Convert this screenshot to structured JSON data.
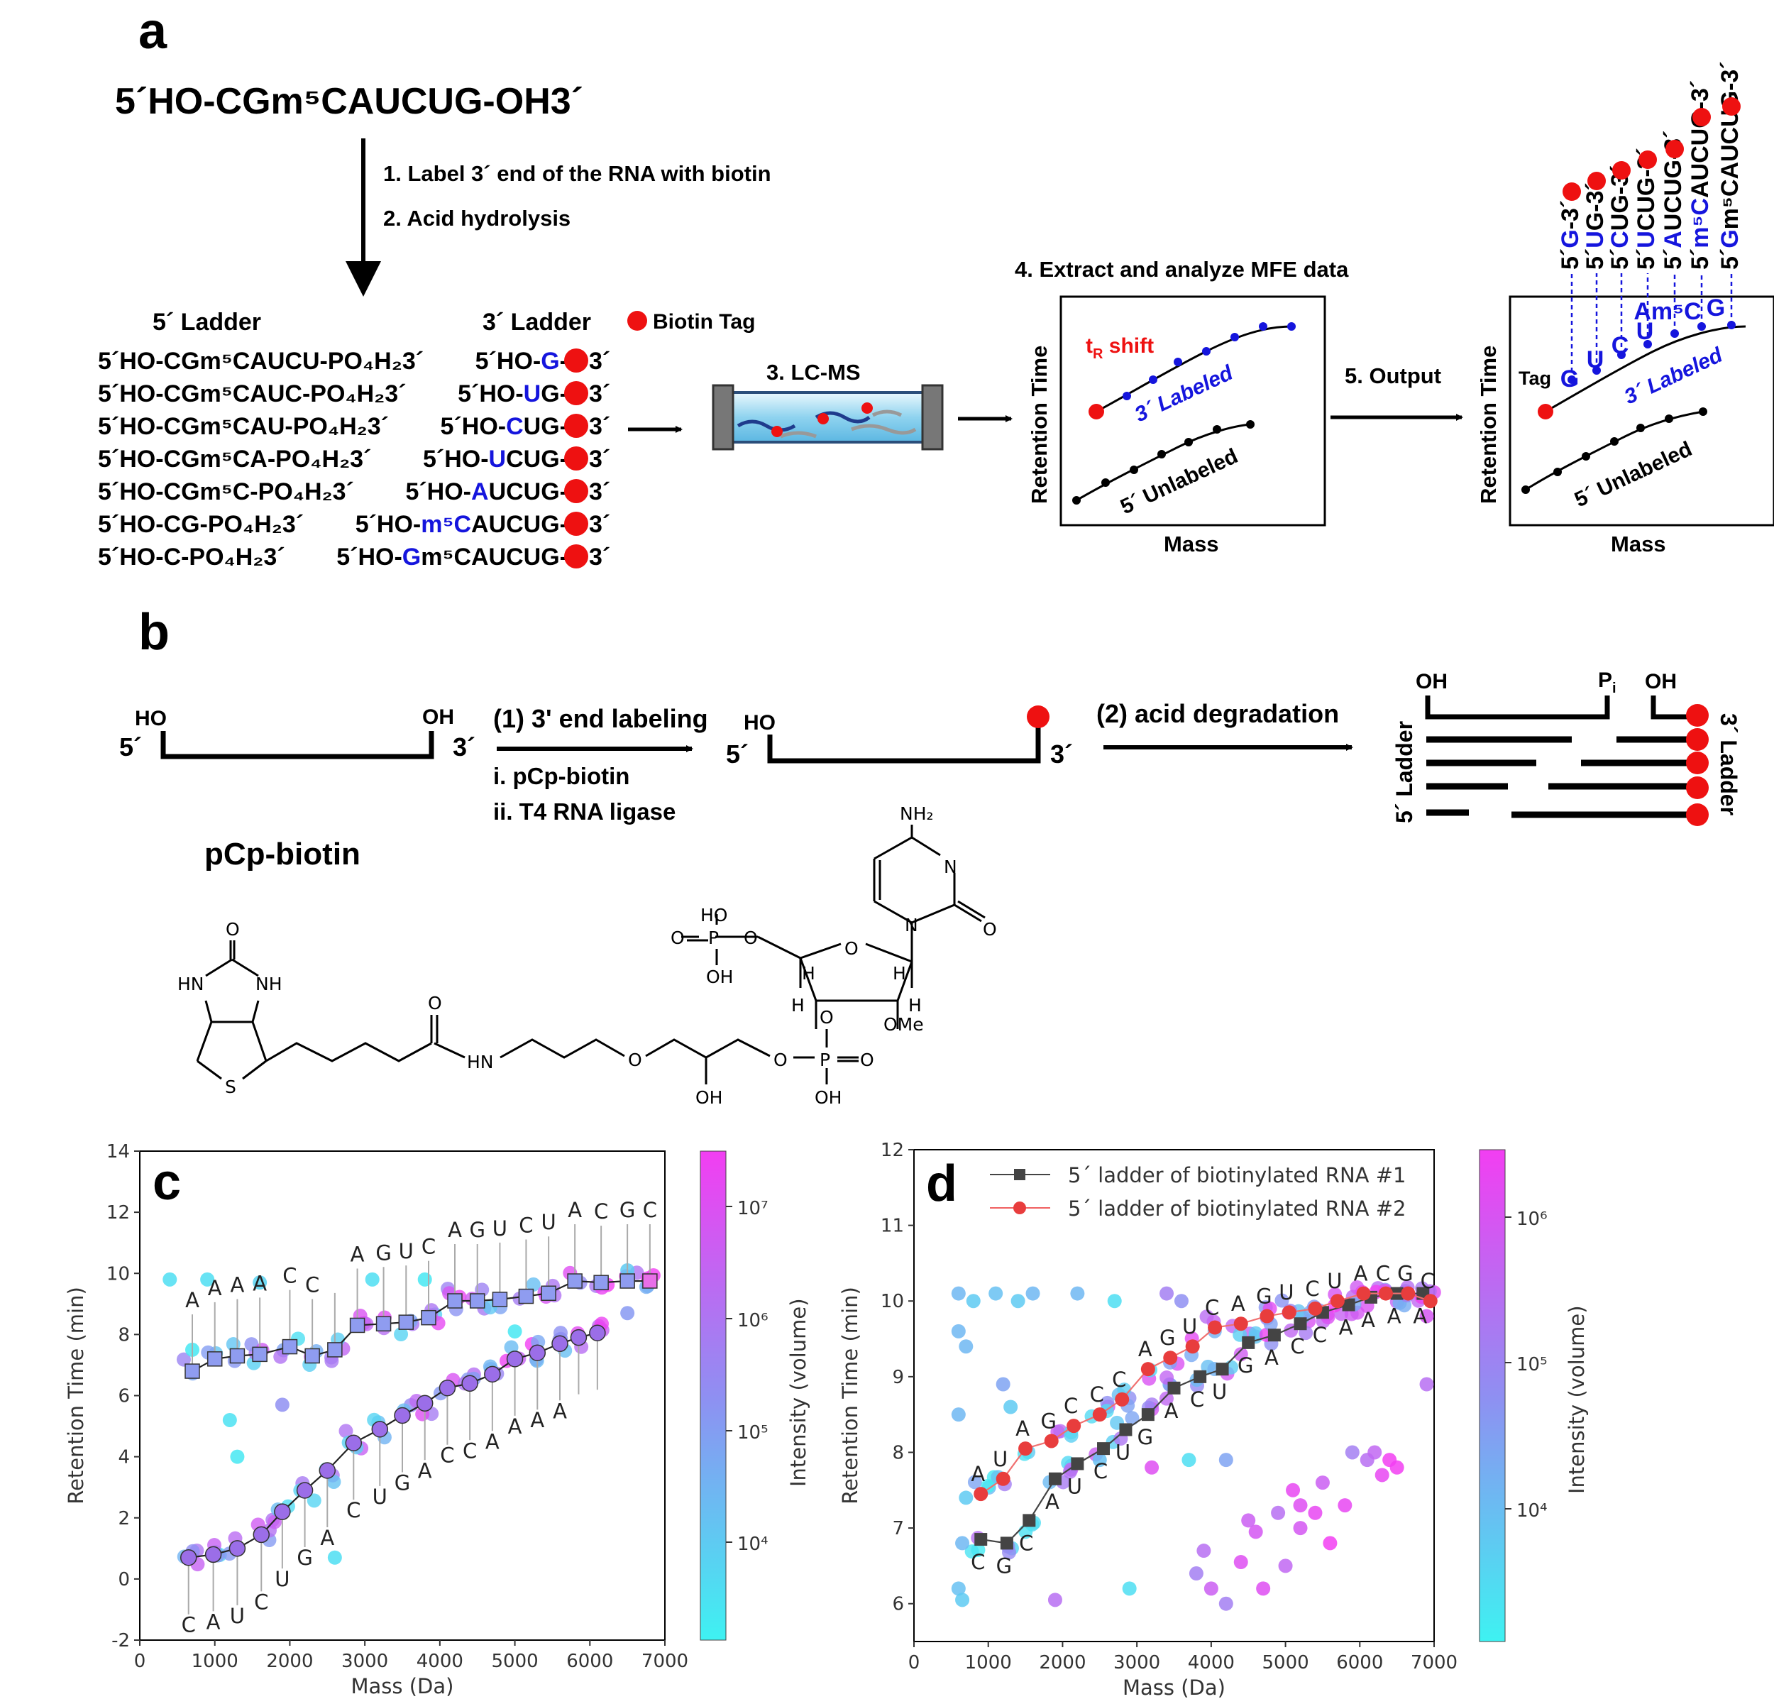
{
  "panel_a": {
    "letter": "a",
    "sequence": "5´HO-CGm⁵CAUCUG-OH3´",
    "step1": "1. Label 3´ end of the RNA with biotin",
    "step2": "2. Acid hydrolysis",
    "ladder5_title": "5´ Ladder",
    "ladder3_title": "3´ Ladder",
    "biotin_tag": "Biotin Tag",
    "ladder5": [
      "5´HO-CGm⁵CAUCU-PO₄H₂3´",
      "5´HO-CGm⁵CAUC-PO₄H₂3´",
      "5´HO-CGm⁵CAU-PO₄H₂3´",
      "5´HO-CGm⁵CA-PO₄H₂3´",
      "5´HO-CGm⁵C-PO₄H₂3´",
      "5´HO-CG-PO₄H₂3´",
      "5´HO-C-PO₄H₂3´"
    ],
    "ladder3": [
      {
        "pre": "5´HO-",
        "hi": "G",
        "post": "-"
      },
      {
        "pre": "5´HO-",
        "hi": "U",
        "post": "G-"
      },
      {
        "pre": "5´HO-",
        "hi": "C",
        "post": "UG-"
      },
      {
        "pre": "5´HO-",
        "hi": "U",
        "post": "CUG-"
      },
      {
        "pre": "5´HO-",
        "hi": "A",
        "post": "UCUG-"
      },
      {
        "pre": "5´HO-",
        "hi": "m⁵C",
        "post": "AUCUG-"
      },
      {
        "pre": "5´HO-",
        "hi": "G",
        "post": "m⁵CAUCUG-"
      }
    ],
    "three_end": "3´",
    "step3": "3. LC-MS",
    "step4": "4. Extract and analyze MFE data",
    "step5": "5. Output",
    "tr_shift": "t",
    "tr_sub": "R",
    "tr_rest": " shift",
    "labeled": "3´ Labeled",
    "unlabeled": "5´ Unlabeled",
    "ret_time": "Retention Time",
    "mass": "Mass",
    "tag": "Tag",
    "output_letters": [
      "G",
      "U",
      "C",
      "U",
      "Am⁵C",
      "G"
    ],
    "output_labels": [
      {
        "pre": "5´",
        "hi": "G",
        "post": "-3´"
      },
      {
        "pre": "5´",
        "hi": "U",
        "post": "G-3´"
      },
      {
        "pre": "5´",
        "hi": "C",
        "post": "UG-3´"
      },
      {
        "pre": "5´",
        "hi": "U",
        "post": "CUG-3´"
      },
      {
        "pre": "5´",
        "hi": "A",
        "post": "UCUG-3´"
      },
      {
        "pre": "5´",
        "hi": "m⁵C",
        "post": "AUCUG-3´"
      },
      {
        "pre": "5´",
        "hi": "G",
        "post": "m⁵CAUCUG-3´"
      }
    ]
  },
  "panel_b": {
    "letter": "b",
    "ho": "HO",
    "oh": "OH",
    "five": "5´",
    "three": "3´",
    "step1": "(1) 3' end labeling",
    "sub_i": "i.  pCp-biotin",
    "sub_ii": "ii. T4 RNA ligase",
    "step2": "(2) acid degradation",
    "pi": "P",
    "pi_sub": "i",
    "ladder5": "5´ Ladder",
    "ladder3": "3´ Ladder",
    "pcp_title": "pCp-biotin",
    "chem": {
      "nh2": "NH₂",
      "n": "N",
      "o": "O",
      "ho": "HO",
      "oh": "OH",
      "hn": "HN",
      "nh": "NH",
      "s": "S",
      "h": "H",
      "ome": "OMe",
      "p": "P"
    }
  },
  "panel_c": {
    "letter": "c",
    "colorbar_label": "Intensity (volume)",
    "colorbar_ticks": [
      "10⁷",
      "10⁶",
      "10⁵",
      "10⁴"
    ],
    "chart_data": {
      "type": "scatter",
      "xlabel": "Mass (Da)",
      "ylabel": "Retention Time (min)",
      "xlim": [
        0,
        7000
      ],
      "ylim": [
        -2,
        14
      ],
      "xticks": [
        0,
        1000,
        2000,
        3000,
        4000,
        5000,
        6000,
        7000
      ],
      "yticks": [
        -2,
        0,
        2,
        4,
        6,
        8,
        10,
        12,
        14
      ],
      "series": [
        {
          "name": "upper ladder",
          "marker": "square",
          "x": [
            700,
            1000,
            1300,
            1600,
            2000,
            2300,
            2600,
            2900,
            3250,
            3550,
            3850,
            4200,
            4500,
            4800,
            5150,
            5450,
            5800,
            6150,
            6500,
            6800
          ],
          "y": [
            6.8,
            7.2,
            7.3,
            7.35,
            7.6,
            7.3,
            7.5,
            8.3,
            8.35,
            8.4,
            8.55,
            9.1,
            9.1,
            9.15,
            9.25,
            9.35,
            9.75,
            9.7,
            9.75,
            9.75
          ],
          "letters": [
            "A",
            "A",
            "A",
            "A",
            "C",
            "C",
            "",
            "A",
            "G",
            "U",
            "C",
            "A",
            "G",
            "U",
            "C",
            "U",
            "A",
            "C",
            "G",
            "C"
          ]
        },
        {
          "name": "lower ladder",
          "marker": "circle",
          "x": [
            650,
            980,
            1300,
            1620,
            1900,
            2200,
            2500,
            2850,
            3200,
            3500,
            3800,
            4100,
            4400,
            4700,
            5000,
            5300,
            5600,
            5850,
            6100
          ],
          "y": [
            0.7,
            0.8,
            1.0,
            1.45,
            2.2,
            2.9,
            3.55,
            4.45,
            4.9,
            5.35,
            5.75,
            6.25,
            6.4,
            6.7,
            7.2,
            7.4,
            7.7,
            7.9,
            8.05
          ],
          "letters": [
            "C",
            "A",
            "U",
            "C",
            "U",
            "G",
            "A",
            "C",
            "U",
            "G",
            "A",
            "C",
            "C",
            "A",
            "A",
            "A",
            "A",
            "",
            ""
          ]
        }
      ]
    }
  },
  "panel_d": {
    "letter": "d",
    "legend": [
      "5´ ladder of biotinylated RNA #1",
      "5´ ladder of biotinylated RNA #2"
    ],
    "colorbar_label": "Intensity (volume)",
    "colorbar_ticks": [
      "10⁶",
      "10⁵",
      "10⁴"
    ],
    "chart_data": {
      "type": "scatter",
      "xlabel": "Mass (Da)",
      "ylabel": "Retention Time (min)",
      "xlim": [
        0,
        7000
      ],
      "ylim": [
        5.5,
        12
      ],
      "xticks": [
        0,
        1000,
        2000,
        3000,
        4000,
        5000,
        6000,
        7000
      ],
      "yticks": [
        6,
        7,
        8,
        9,
        10,
        11,
        12
      ],
      "series": [
        {
          "name": "5´ ladder of biotinylated RNA #1",
          "marker": "square",
          "color": "#444444",
          "x": [
            900,
            1250,
            1550,
            1900,
            2200,
            2550,
            2850,
            3150,
            3500,
            3850,
            4150,
            4500,
            4850,
            5200,
            5500,
            5850,
            6150,
            6500,
            6850
          ],
          "y": [
            6.85,
            6.8,
            7.1,
            7.65,
            7.85,
            8.05,
            8.3,
            8.5,
            8.85,
            9.0,
            9.1,
            9.45,
            9.55,
            9.7,
            9.85,
            9.95,
            10.05,
            10.1,
            10.1
          ],
          "letters": [
            "C",
            "G",
            "C",
            "A",
            "U",
            "C",
            "U",
            "G",
            "A",
            "C",
            "U",
            "G",
            "A",
            "C",
            "C",
            "A",
            "A",
            "A",
            "A"
          ]
        },
        {
          "name": "5´ ladder of biotinylated RNA #2",
          "marker": "circle",
          "color": "#e83d3d",
          "x": [
            900,
            1200,
            1500,
            1850,
            2150,
            2500,
            2800,
            3150,
            3450,
            3750,
            4050,
            4400,
            4750,
            5050,
            5400,
            5700,
            6050,
            6350,
            6650,
            6950
          ],
          "y": [
            7.45,
            7.65,
            8.05,
            8.15,
            8.35,
            8.5,
            8.7,
            9.1,
            9.25,
            9.4,
            9.65,
            9.7,
            9.8,
            9.85,
            9.9,
            10.0,
            10.1,
            10.1,
            10.1,
            10.0
          ],
          "letters": [
            "A",
            "U",
            "A",
            "G",
            "C",
            "C",
            "C",
            "A",
            "G",
            "U",
            "C",
            "A",
            "G",
            "U",
            "C",
            "U",
            "A",
            "C",
            "G",
            "C"
          ]
        }
      ]
    }
  }
}
